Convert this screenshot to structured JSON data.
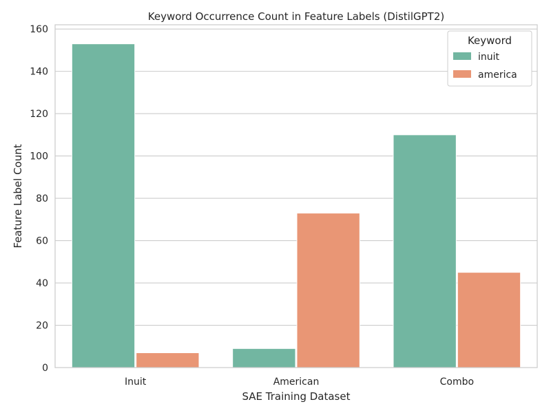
{
  "chart_data": {
    "type": "bar",
    "title": "Keyword Occurrence Count in Feature Labels (DistilGPT2)",
    "xlabel": "SAE Training Dataset",
    "ylabel": "Feature Label Count",
    "categories": [
      "Inuit",
      "American",
      "Combo"
    ],
    "series": [
      {
        "name": "inuit",
        "values": [
          153,
          9,
          110
        ],
        "color": "#72b6a1"
      },
      {
        "name": "america",
        "values": [
          7,
          73,
          45
        ],
        "color": "#e99675"
      }
    ],
    "ylim": [
      0,
      162
    ],
    "yticks": [
      0,
      20,
      40,
      60,
      80,
      100,
      120,
      140,
      160
    ],
    "grid": "horizontal",
    "legend": {
      "title": "Keyword",
      "placement": "top-right"
    }
  }
}
